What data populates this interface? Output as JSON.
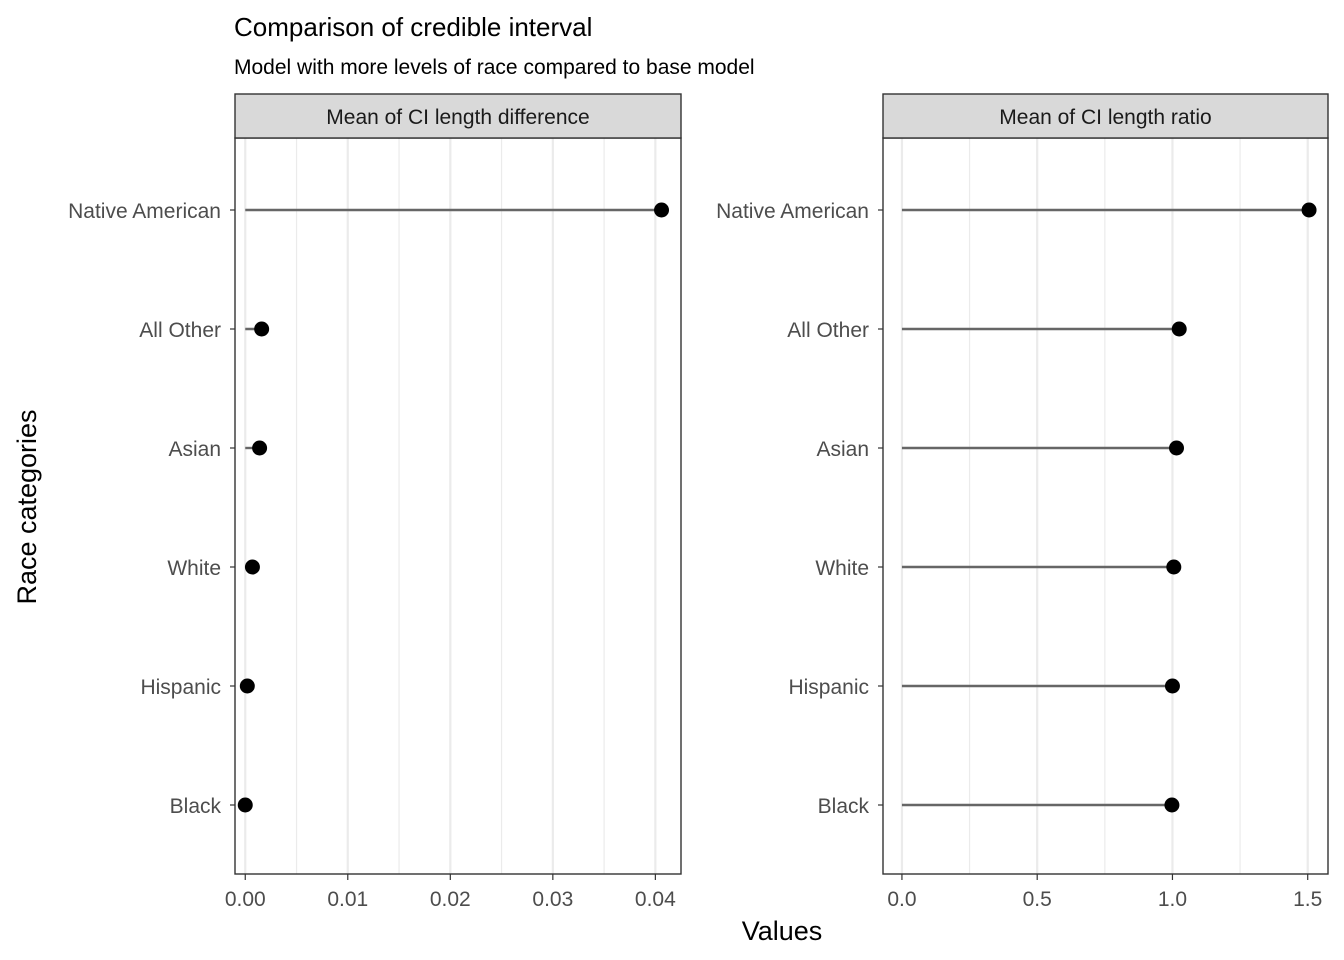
{
  "title": "Comparison of credible interval",
  "subtitle": "Model with more levels of race compared to base model",
  "xlabel": "Values",
  "ylabel": "Race categories",
  "colors": {
    "segment": "#666666",
    "point": "#000000",
    "strip_fill": "#d9d9d9",
    "grid": "#ebebeb",
    "border": "#333333"
  },
  "chart_data": [
    {
      "type": "lollipop",
      "panel_title": "Mean of CI length difference",
      "categories": [
        "Native American",
        "All Other",
        "Asian",
        "White",
        "Hispanic",
        "Black"
      ],
      "values": [
        0.0406,
        0.0016,
        0.0014,
        0.0007,
        0.0002,
        0.0
      ],
      "xlim": [
        -0.001,
        0.0425
      ],
      "xticks": [
        0.0,
        0.01,
        0.02,
        0.03,
        0.04
      ],
      "xtick_labels": [
        "0.00",
        "0.01",
        "0.02",
        "0.03",
        "0.04"
      ],
      "grid": true
    },
    {
      "type": "lollipop",
      "panel_title": "Mean of CI length ratio",
      "categories": [
        "Native American",
        "All Other",
        "Asian",
        "White",
        "Hispanic",
        "Black"
      ],
      "values": [
        1.505,
        1.025,
        1.015,
        1.005,
        1.0,
        0.998
      ],
      "xlim": [
        -0.07,
        1.575
      ],
      "xticks": [
        0.0,
        0.5,
        1.0,
        1.5
      ],
      "xtick_labels": [
        "0.0",
        "0.5",
        "1.0",
        "1.5"
      ],
      "grid": true
    }
  ]
}
